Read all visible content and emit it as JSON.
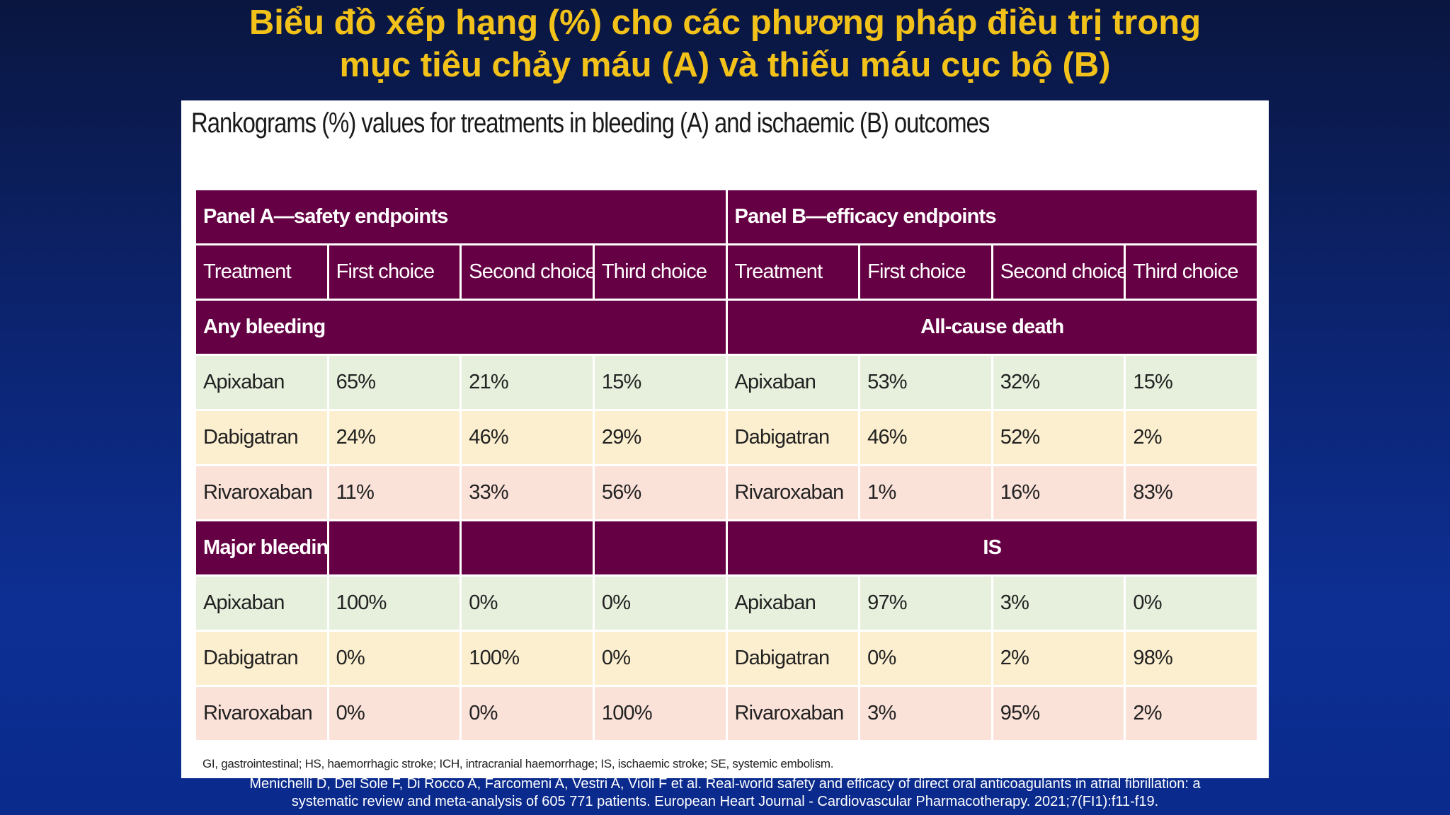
{
  "slide_title": {
    "line1": "Biểu đồ xếp hạng (%) cho các phương pháp điều trị trong",
    "line2": "mục tiêu chảy máu (A) và thiếu máu cục bộ (B)"
  },
  "figure_title": "Rankograms (%) values for treatments in bleeding (A) and ischaemic (B) outcomes",
  "table": {
    "panel_a": "Panel A—safety endpoints",
    "panel_b": "Panel B—efficacy  endpoints",
    "columns": [
      "Treatment",
      "First choice",
      "Second choice",
      "Third choice",
      "Treatment",
      "First choice",
      "Second choice",
      "Third choice"
    ],
    "section1": {
      "a_label": "Any bleeding",
      "b_label": "All-cause death",
      "rows": [
        [
          "Apixaban",
          "65%",
          "21%",
          "15%",
          "Apixaban",
          "53%",
          "32%",
          "15%"
        ],
        [
          "Dabigatran",
          "24%",
          "46%",
          "29%",
          "Dabigatran",
          "46%",
          "52%",
          "2%"
        ],
        [
          "Rivaroxaban",
          "11%",
          "33%",
          "56%",
          "Rivaroxaban",
          "1%",
          "16%",
          "83%"
        ]
      ]
    },
    "section2": {
      "a_label": "Major bleeding",
      "b_label": "IS",
      "rows": [
        [
          "Apixaban",
          "100%",
          "0%",
          "0%",
          "Apixaban",
          "97%",
          "3%",
          "0%"
        ],
        [
          "Dabigatran",
          "0%",
          "100%",
          "0%",
          "Dabigatran",
          "0%",
          "2%",
          "98%"
        ],
        [
          "Rivaroxaban",
          "0%",
          "0%",
          "100%",
          "Rivaroxaban",
          "3%",
          "95%",
          "2%"
        ]
      ]
    }
  },
  "footnote": "GI, gastrointestinal; HS, haemorrhagic stroke; ICH, intracranial haemorrhage; IS, ischaemic stroke; SE, systemic embolism.",
  "citation": {
    "line1": "Menichelli D, Del Sole F, Di Rocco A, Farcomeni A, Vestri A, Violi F et al. Real-world safety and efficacy of direct oral anticoagulants in atrial fibrillation: a",
    "line2": "systematic review and meta-analysis of 605 771 patients. European Heart Journal - Cardiovascular Pharmacotherapy. 2021;7(FI1):f11-f19."
  },
  "colors": {
    "title": "#f2c21a",
    "header_purple": "#660044",
    "row_green": "#e6f0dc",
    "row_yellow": "#fcefcf",
    "row_pink": "#fbe2d9"
  }
}
